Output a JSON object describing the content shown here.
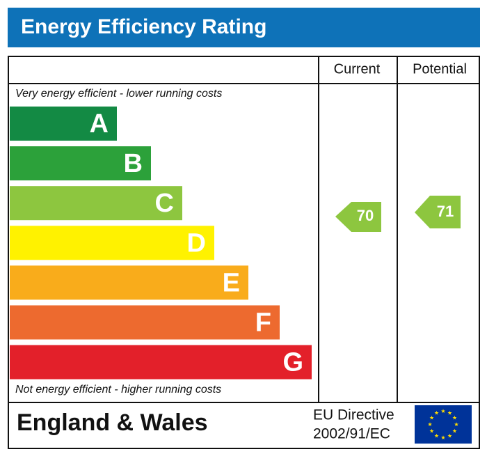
{
  "header": {
    "title": "Energy Efficiency Rating"
  },
  "columns": [
    "Current",
    "Potential"
  ],
  "scale": {
    "top_note": "Very energy efficient - lower running costs",
    "bottom_note": "Not energy efficient - higher running costs",
    "bands": [
      "A",
      "B",
      "C",
      "D",
      "E",
      "F",
      "G"
    ]
  },
  "ratings": {
    "current": 70,
    "potential": 71
  },
  "footer": {
    "region": "England & Wales",
    "directive_label": "EU Directive",
    "directive_code": "2002/91/EC"
  }
}
